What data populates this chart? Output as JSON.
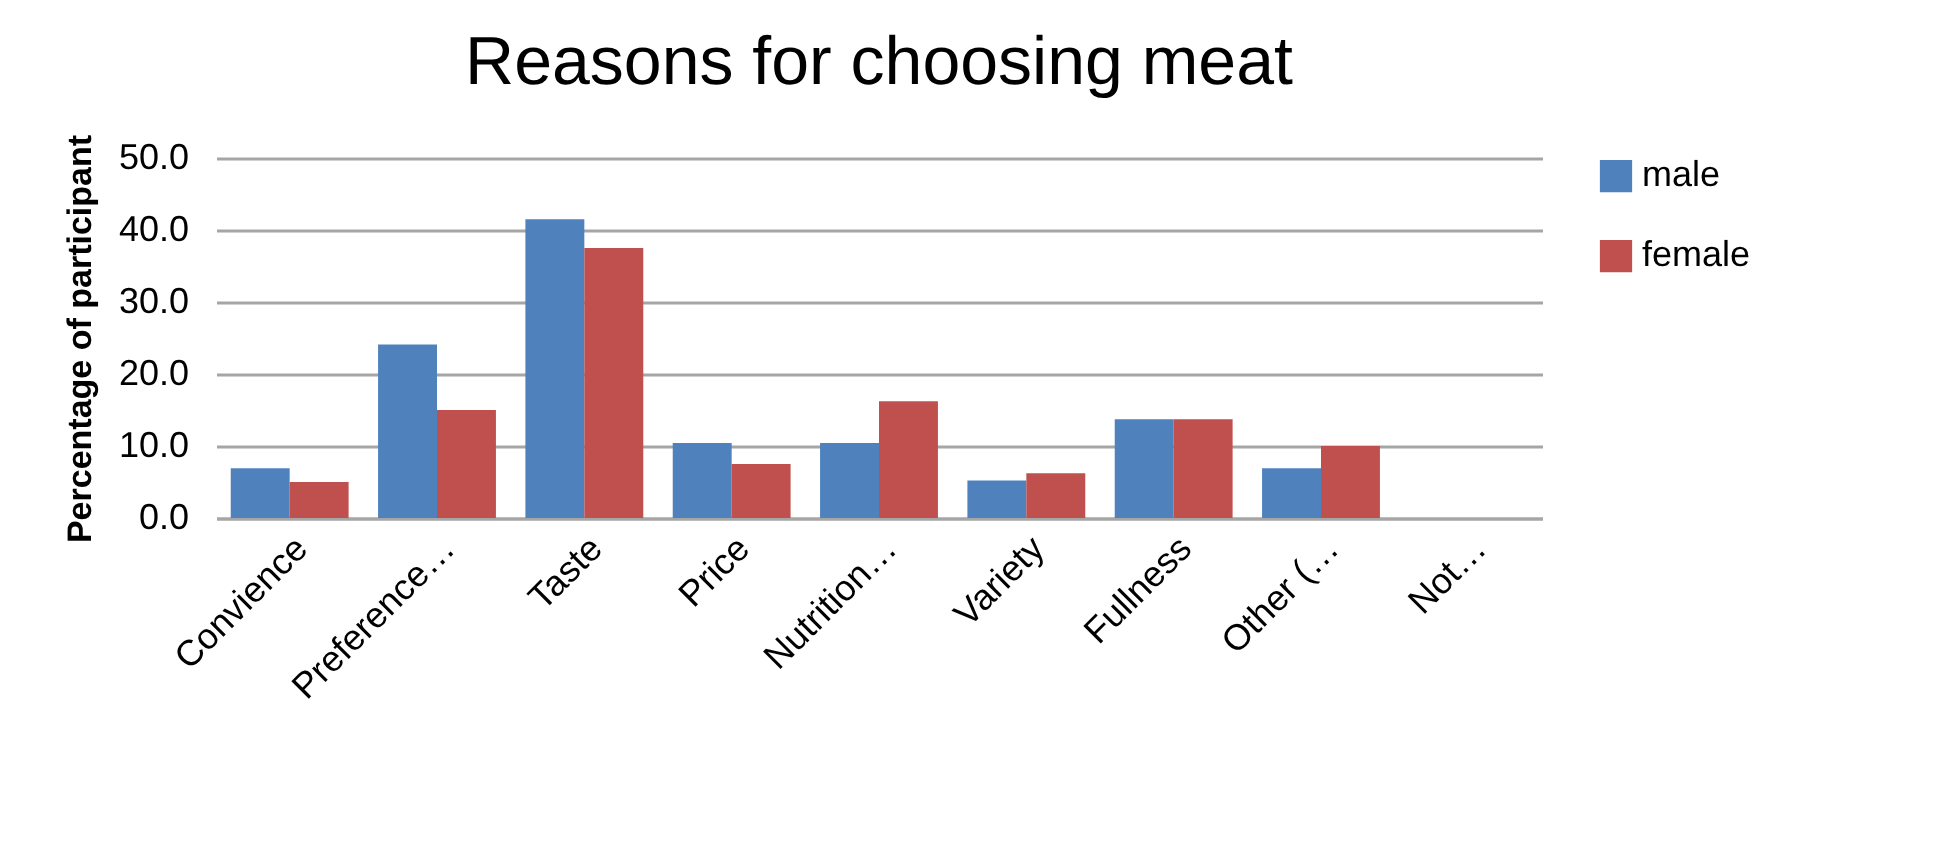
{
  "chart_data": {
    "type": "bar",
    "title": "Reasons for choosing meat",
    "ylabel": "Percentage of participant",
    "categories": [
      "Convience",
      "Preference…",
      "Taste",
      "Price",
      "Nutrition…",
      "Variety",
      "Fullness",
      "Other (…",
      "Not…"
    ],
    "series": [
      {
        "name": "male",
        "color": "#4f81bd",
        "values": [
          6.9,
          24.1,
          41.5,
          10.4,
          10.4,
          5.2,
          13.7,
          6.9,
          0
        ]
      },
      {
        "name": "female",
        "color": "#c0504d",
        "values": [
          5.0,
          15.0,
          37.5,
          7.5,
          16.2,
          6.2,
          13.7,
          10.0,
          0
        ]
      }
    ],
    "ylim": [
      0,
      50
    ],
    "yticks": [
      {
        "value": 0,
        "label": "0.0"
      },
      {
        "value": 10,
        "label": "10.0"
      },
      {
        "value": 20,
        "label": "20.0"
      },
      {
        "value": 30,
        "label": "30.0"
      },
      {
        "value": 40,
        "label": "40.0"
      },
      {
        "value": 50,
        "label": "50.0"
      }
    ],
    "grid": "y",
    "legend": "right"
  }
}
